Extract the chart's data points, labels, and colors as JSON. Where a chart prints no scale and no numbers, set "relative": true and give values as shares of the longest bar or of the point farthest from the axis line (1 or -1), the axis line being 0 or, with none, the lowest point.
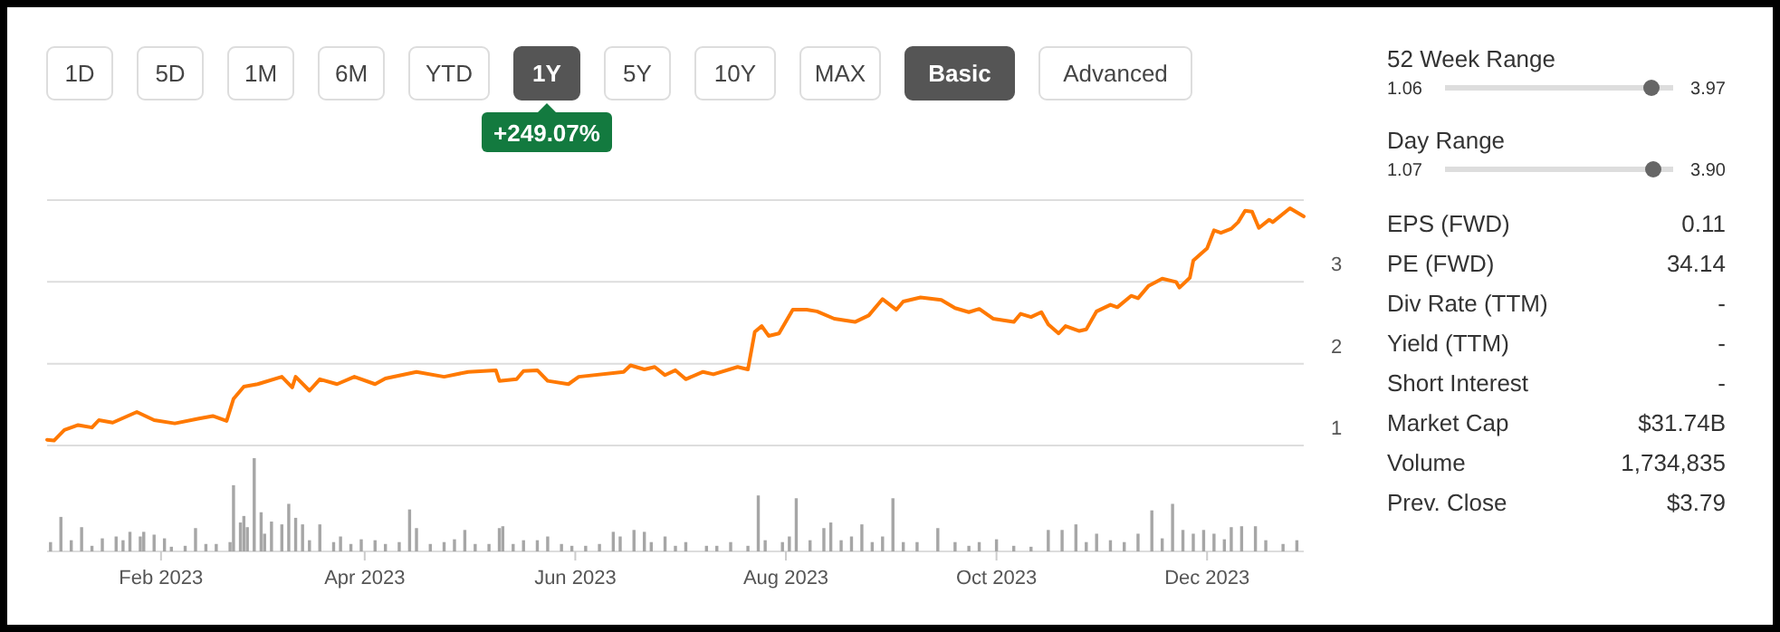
{
  "chart_data": [
    {
      "type": "other",
      "categories": [
        "1D",
        "5D",
        "1M",
        "6M",
        "YTD",
        "1Y",
        "5Y",
        "10Y",
        "MAX",
        "Basic",
        "Advanced"
      ],
      "colors": [
        "#ffffff",
        "#ffffff",
        "#ffffff",
        "#ffffff",
        "#ffffff",
        "#555555",
        "#ffffff",
        "#ffffff",
        "#ffffff",
        "#555555",
        "#ffffff"
      ],
      "annotations": [
        "+249.07%"
      ]
    },
    {
      "type": "line",
      "xlim": [
        "2022-12-30",
        "2023-12-29"
      ],
      "ylim": [
        1,
        4
      ],
      "yticks": [
        1,
        2,
        3,
        {
          "value": 4,
          "label": null
        }
      ],
      "grid": "y",
      "tick_labels": "y",
      "series": [
        {
          "color": "#ff7900",
          "x": [
            "2022-12-30",
            "2023-01-01",
            "2023-01-04",
            "2023-01-08",
            "2023-01-12",
            "2023-01-14",
            "2023-01-18",
            "2023-01-25",
            "2023-01-30",
            "2023-02-05",
            "2023-02-12",
            "2023-02-16",
            "2023-02-20",
            "2023-02-22",
            "2023-02-25",
            "2023-03-01",
            "2023-03-08",
            "2023-03-11",
            "2023-03-12",
            "2023-03-16",
            "2023-03-19",
            "2023-03-24",
            "2023-03-29",
            "2023-04-04",
            "2023-04-07",
            "2023-04-16",
            "2023-04-24",
            "2023-05-01",
            "2023-05-09",
            "2023-05-10",
            "2023-05-15",
            "2023-05-17",
            "2023-05-21",
            "2023-05-24",
            "2023-05-30",
            "2023-06-02",
            "2023-06-15",
            "2023-06-17",
            "2023-06-21",
            "2023-06-24",
            "2023-06-27",
            "2023-06-30",
            "2023-07-03",
            "2023-07-08",
            "2023-07-11",
            "2023-07-18",
            "2023-07-21",
            "2023-07-23",
            "2023-07-25",
            "2023-07-27",
            "2023-07-30",
            "2023-08-03",
            "2023-08-07",
            "2023-08-10",
            "2023-08-15",
            "2023-08-21",
            "2023-08-25",
            "2023-08-29",
            "2023-09-02",
            "2023-09-04",
            "2023-09-09",
            "2023-09-15",
            "2023-09-19",
            "2023-09-23",
            "2023-09-26",
            "2023-09-30",
            "2023-10-06",
            "2023-10-08",
            "2023-10-11",
            "2023-10-14",
            "2023-10-16",
            "2023-10-19",
            "2023-10-21",
            "2023-10-25",
            "2023-10-27",
            "2023-10-30",
            "2023-11-03",
            "2023-11-05",
            "2023-11-09",
            "2023-11-11",
            "2023-11-14",
            "2023-11-18",
            "2023-11-22",
            "2023-11-23",
            "2023-11-26",
            "2023-11-27",
            "2023-12-01",
            "2023-12-03",
            "2023-12-05",
            "2023-12-08",
            "2023-12-10",
            "2023-12-12",
            "2023-12-14",
            "2023-12-16",
            "2023-12-19",
            "2023-12-20",
            "2023-12-25",
            "2023-12-29"
          ],
          "values": [
            1.07,
            1.06,
            1.19,
            1.25,
            1.22,
            1.31,
            1.28,
            1.41,
            1.31,
            1.27,
            1.33,
            1.36,
            1.3,
            1.57,
            1.72,
            1.75,
            1.84,
            1.71,
            1.84,
            1.67,
            1.81,
            1.75,
            1.84,
            1.75,
            1.82,
            1.9,
            1.84,
            1.9,
            1.92,
            1.79,
            1.81,
            1.91,
            1.92,
            1.79,
            1.75,
            1.84,
            1.9,
            1.98,
            1.93,
            1.96,
            1.86,
            1.92,
            1.81,
            1.9,
            1.87,
            1.96,
            1.93,
            2.39,
            2.46,
            2.34,
            2.37,
            2.66,
            2.66,
            2.64,
            2.55,
            2.51,
            2.59,
            2.79,
            2.66,
            2.76,
            2.81,
            2.78,
            2.68,
            2.63,
            2.67,
            2.55,
            2.51,
            2.61,
            2.57,
            2.63,
            2.48,
            2.37,
            2.46,
            2.4,
            2.42,
            2.64,
            2.72,
            2.69,
            2.83,
            2.8,
            2.95,
            3.04,
            3.0,
            2.93,
            3.05,
            3.26,
            3.41,
            3.63,
            3.6,
            3.65,
            3.73,
            3.87,
            3.86,
            3.66,
            3.76,
            3.73,
            3.9,
            3.8
          ]
        }
      ]
    },
    {
      "type": "bar",
      "relative": true,
      "xlim": [
        "2022-12-30",
        "2023-12-29"
      ],
      "xticks": [
        {
          "value": "2023-02-01",
          "label": "Feb 2023"
        },
        {
          "value": "2023-04-01",
          "label": "Apr 2023"
        },
        {
          "value": "2023-06-01",
          "label": "Jun 2023"
        },
        {
          "value": "2023-08-01",
          "label": "Aug 2023"
        },
        {
          "value": "2023-10-01",
          "label": "Oct 2023"
        },
        {
          "value": "2023-12-01",
          "label": "Dec 2023"
        }
      ],
      "series": [
        {
          "color": "#a6a6a6",
          "x": [
            "2022-12-31",
            "2023-01-03",
            "2023-01-06",
            "2023-01-09",
            "2023-01-12",
            "2023-01-15",
            "2023-01-19",
            "2023-01-21",
            "2023-01-23",
            "2023-01-26",
            "2023-01-27",
            "2023-01-30",
            "2023-02-02",
            "2023-02-04",
            "2023-02-08",
            "2023-02-11",
            "2023-02-14",
            "2023-02-17",
            "2023-02-21",
            "2023-02-22",
            "2023-02-24",
            "2023-02-25",
            "2023-02-26",
            "2023-02-28",
            "2023-03-02",
            "2023-03-03",
            "2023-03-05",
            "2023-03-08",
            "2023-03-10",
            "2023-03-12",
            "2023-03-14",
            "2023-03-16",
            "2023-03-19",
            "2023-03-23",
            "2023-03-25",
            "2023-03-28",
            "2023-03-31",
            "2023-04-04",
            "2023-04-07",
            "2023-04-11",
            "2023-04-14",
            "2023-04-16",
            "2023-04-20",
            "2023-04-24",
            "2023-04-27",
            "2023-04-30",
            "2023-05-03",
            "2023-05-07",
            "2023-05-10",
            "2023-05-11",
            "2023-05-14",
            "2023-05-17",
            "2023-05-21",
            "2023-05-24",
            "2023-05-28",
            "2023-05-31",
            "2023-06-04",
            "2023-06-08",
            "2023-06-12",
            "2023-06-14",
            "2023-06-18",
            "2023-06-21",
            "2023-06-23",
            "2023-06-27",
            "2023-06-30",
            "2023-07-03",
            "2023-07-09",
            "2023-07-12",
            "2023-07-16",
            "2023-07-21",
            "2023-07-24",
            "2023-07-26",
            "2023-07-31",
            "2023-08-02",
            "2023-08-04",
            "2023-08-08",
            "2023-08-12",
            "2023-08-14",
            "2023-08-17",
            "2023-08-20",
            "2023-08-23",
            "2023-08-26",
            "2023-08-29",
            "2023-09-01",
            "2023-09-04",
            "2023-09-08",
            "2023-09-14",
            "2023-09-19",
            "2023-09-23",
            "2023-09-26",
            "2023-10-01",
            "2023-10-06",
            "2023-10-11",
            "2023-10-16",
            "2023-10-20",
            "2023-10-24",
            "2023-10-27",
            "2023-10-30",
            "2023-11-03",
            "2023-11-07",
            "2023-11-11",
            "2023-11-15",
            "2023-11-18",
            "2023-11-21",
            "2023-11-24",
            "2023-11-27",
            "2023-11-30",
            "2023-12-03",
            "2023-12-06",
            "2023-12-08",
            "2023-12-11",
            "2023-12-15",
            "2023-12-18",
            "2023-12-23",
            "2023-12-27"
          ],
          "values": [
            0.1,
            0.37,
            0.12,
            0.26,
            0.06,
            0.14,
            0.16,
            0.12,
            0.21,
            0.16,
            0.21,
            0.18,
            0.14,
            0.05,
            0.06,
            0.25,
            0.08,
            0.08,
            0.1,
            0.71,
            0.31,
            0.38,
            0.26,
            1,
            0.42,
            0.19,
            0.32,
            0.29,
            0.51,
            0.36,
            0.29,
            0.12,
            0.29,
            0.1,
            0.16,
            0.08,
            0.13,
            0.12,
            0.08,
            0.1,
            0.45,
            0.25,
            0.08,
            0.1,
            0.13,
            0.23,
            0.08,
            0.08,
            0.25,
            0.27,
            0.08,
            0.12,
            0.12,
            0.16,
            0.08,
            0.06,
            0.06,
            0.08,
            0.21,
            0.16,
            0.23,
            0.21,
            0.1,
            0.16,
            0.06,
            0.1,
            0.06,
            0.06,
            0.1,
            0.06,
            0.6,
            0.12,
            0.1,
            0.16,
            0.57,
            0.12,
            0.25,
            0.31,
            0.12,
            0.16,
            0.29,
            0.1,
            0.16,
            0.57,
            0.1,
            0.1,
            0.25,
            0.1,
            0.06,
            0.1,
            0.13,
            0.06,
            0.05,
            0.23,
            0.23,
            0.29,
            0.1,
            0.19,
            0.12,
            0.1,
            0.19,
            0.44,
            0.14,
            0.51,
            0.23,
            0.19,
            0.23,
            0.19,
            0.13,
            0.26,
            0.27,
            0.27,
            0.12,
            0.08,
            0.12
          ]
        }
      ]
    },
    {
      "type": "other",
      "categories": [
        "52 Week Range",
        "Day Range",
        "EPS (FWD)",
        "PE (FWD)",
        "Div Rate (TTM)",
        "Yield (TTM)",
        "Short Interest",
        "Market Cap",
        "Volume",
        "Prev. Close"
      ],
      "value_labels": [
        [
          "1.06",
          "3.97"
        ],
        [
          "1.07",
          "3.90"
        ],
        "0.11",
        "34.14",
        "-",
        "-",
        "-",
        "$31.74B",
        "1,734,835",
        "$3.79"
      ]
    }
  ]
}
